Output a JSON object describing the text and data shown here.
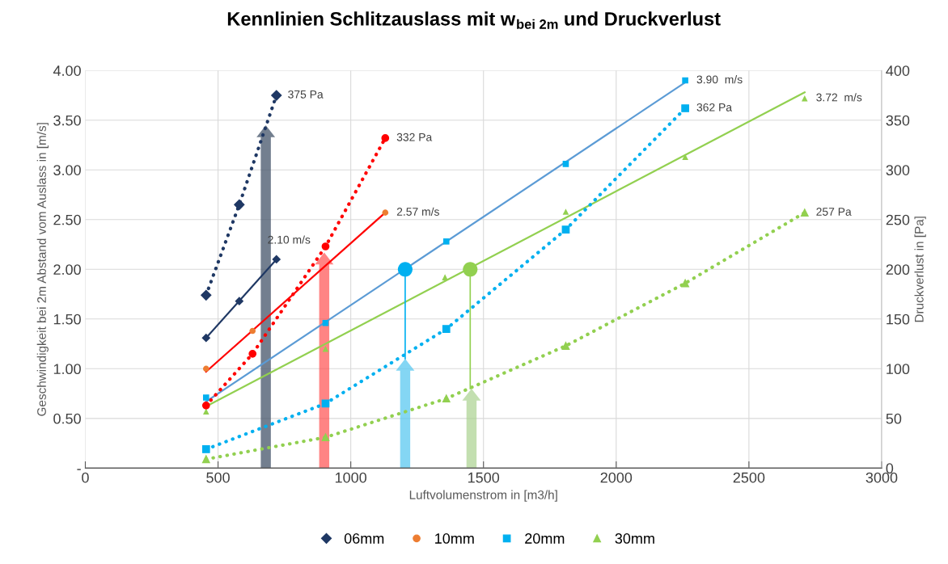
{
  "chart_data": {
    "type": "scatter",
    "title": "Kennlinien Schlitzauslass mit w$_{bei 2m}$ und Druckverlust",
    "xlabel": "Luftvolumenstrom in [m3/h]",
    "ylabel": "Geschwindigkeit bei 2m Abstand vom Auslass in [m/s]",
    "y2label": "Druckverlust in [Pa]",
    "xlim": [
      0,
      3000
    ],
    "xticks": [
      0,
      500,
      1000,
      1500,
      2000,
      2500,
      3000
    ],
    "ylim": [
      0,
      4.0
    ],
    "yticks": [
      {
        "value": 0,
        "label": "-"
      },
      {
        "value": 0.5,
        "label": "0.50"
      },
      {
        "value": 1.0,
        "label": "1.00"
      },
      {
        "value": 1.5,
        "label": "1.50"
      },
      {
        "value": 2.0,
        "label": "2.00"
      },
      {
        "value": 2.5,
        "label": "2.50"
      },
      {
        "value": 3.0,
        "label": "3.00"
      },
      {
        "value": 3.5,
        "label": "3.50"
      },
      {
        "value": 4.0,
        "label": "4.00"
      }
    ],
    "y2lim": [
      0,
      400
    ],
    "y2ticks": [
      0,
      50,
      100,
      150,
      200,
      250,
      300,
      350,
      400
    ],
    "grid": true,
    "legend": "bottom",
    "series": [
      {
        "name": "06mm",
        "type": "scatter",
        "marker": "diamond",
        "color": "#1f3864",
        "x": [
          455,
          580,
          720
        ],
        "values": [
          1.31,
          1.68,
          2.1
        ]
      },
      {
        "name": "10mm",
        "type": "scatter",
        "marker": "circle",
        "color": "#ed7d31",
        "x": [
          455,
          630,
          1130
        ],
        "values": [
          1.0,
          1.38,
          2.57
        ]
      },
      {
        "name": "20mm",
        "type": "scatter",
        "marker": "square",
        "color": "#00b0f0",
        "x": [
          455,
          905,
          1360,
          1810,
          2260
        ],
        "values": [
          0.71,
          1.46,
          2.28,
          3.06,
          3.9
        ]
      },
      {
        "name": "30mm",
        "type": "scatter",
        "marker": "triangle",
        "color": "#92d050",
        "x": [
          455,
          905,
          1355,
          1810,
          2260,
          2710
        ],
        "values": [
          0.57,
          1.2,
          1.92,
          2.58,
          3.13,
          3.72
        ]
      },
      {
        "type": "line",
        "line_style": "solid",
        "color": "#1f3864",
        "x": [
          455,
          720
        ],
        "values": [
          1.31,
          2.1
        ]
      },
      {
        "type": "line",
        "line_style": "solid",
        "color": "#ff0000",
        "x": [
          455,
          1130
        ],
        "values": [
          0.97,
          2.57
        ]
      },
      {
        "type": "line",
        "line_style": "solid",
        "color": "#5b9bd5",
        "x": [
          455,
          2260
        ],
        "values": [
          0.67,
          3.88
        ]
      },
      {
        "type": "line",
        "line_style": "solid",
        "color": "#92d050",
        "x": [
          455,
          2710
        ],
        "values": [
          0.62,
          3.78
        ]
      },
      {
        "type": "line",
        "axis": "y2",
        "line_style": "dotted",
        "marker": "diamond",
        "color": "#1f3864",
        "x": [
          455,
          580,
          720
        ],
        "values": [
          174,
          265,
          375
        ]
      },
      {
        "type": "line",
        "axis": "y2",
        "line_style": "dotted",
        "marker": "circle",
        "color": "#ff0000",
        "x": [
          455,
          630,
          905,
          1130
        ],
        "values": [
          63,
          115,
          223,
          332
        ]
      },
      {
        "type": "line",
        "axis": "y2",
        "line_style": "dotted",
        "marker": "square",
        "color": "#00b0f0",
        "x": [
          455,
          905,
          1360,
          1810,
          2260
        ],
        "values": [
          19,
          65,
          140,
          240,
          362
        ]
      },
      {
        "type": "line",
        "axis": "y2",
        "line_style": "dotted",
        "marker": "triangle",
        "color": "#92d050",
        "x": [
          455,
          905,
          1360,
          1810,
          2260,
          2710
        ],
        "values": [
          9,
          31,
          70,
          123,
          186,
          257
        ]
      },
      {
        "type": "line",
        "line_style": "solid",
        "color": "#00b0f0",
        "x": [
          1205,
          1205
        ],
        "values": [
          1.1,
          2.0
        ]
      },
      {
        "type": "line",
        "line_style": "solid",
        "color": "#92d050",
        "x": [
          1450,
          1450
        ],
        "values": [
          0.8,
          2.0
        ]
      },
      {
        "type": "scatter",
        "marker": "circle",
        "color": "#00b0f0",
        "x": [
          1205
        ],
        "values": [
          2.0
        ]
      },
      {
        "type": "scatter",
        "marker": "circle",
        "color": "#92d050",
        "x": [
          1450
        ],
        "values": [
          2.0
        ]
      }
    ],
    "annotations": [
      {
        "text": "375 Pa",
        "x": 720,
        "y": 3.75
      },
      {
        "text": "332 Pa",
        "x": 1130,
        "y": 3.32
      },
      {
        "text": "2.10 m/s",
        "x": 720,
        "y": 2.1
      },
      {
        "text": "2.57 m/s",
        "x": 1130,
        "y": 2.57
      },
      {
        "text": "3.90  m/s",
        "x": 2260,
        "y": 3.9
      },
      {
        "text": "362 Pa",
        "x": 2260,
        "y": 3.62
      },
      {
        "text": "3.72  m/s",
        "x": 2710,
        "y": 3.72
      },
      {
        "text": "257 Pa",
        "x": 2710,
        "y": 2.57
      }
    ]
  }
}
